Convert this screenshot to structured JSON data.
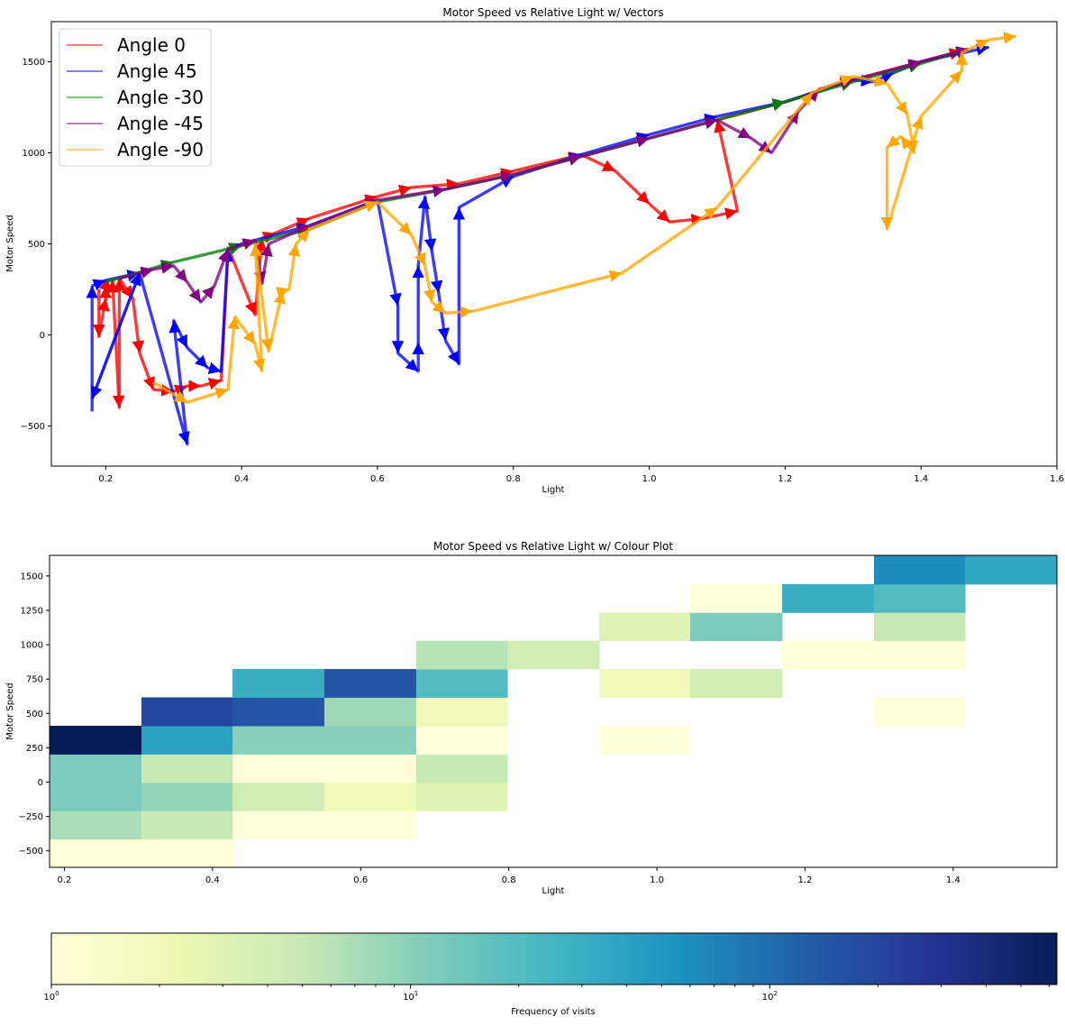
{
  "chart_data": [
    {
      "type": "line",
      "title": "Motor Speed vs Relative Light w/ Vectors",
      "xlabel": "Light",
      "ylabel": "Motor Speed",
      "xlim": [
        0.12,
        1.6
      ],
      "ylim": [
        -720,
        1720
      ],
      "xticks": [
        0.2,
        0.4,
        0.6,
        0.8,
        1.0,
        1.2,
        1.4,
        1.6
      ],
      "xtick_labels": [
        "0.2",
        "0.4",
        "0.6",
        "0.8",
        "1.0",
        "1.2",
        "1.4",
        "1.6"
      ],
      "yticks": [
        -500,
        0,
        500,
        1000,
        1500
      ],
      "ytick_labels": [
        "−500",
        "0",
        "500",
        "1000",
        "1500"
      ],
      "grid": false,
      "legend": "top-left",
      "series": [
        {
          "name": "Angle 0",
          "color": "#ff0000",
          "points": [
            [
              0.19,
              250
            ],
            [
              0.19,
              -10
            ],
            [
              0.2,
              200
            ],
            [
              0.2,
              270
            ],
            [
              0.21,
              240
            ],
            [
              0.21,
              300
            ],
            [
              0.22,
              -400
            ],
            [
              0.22,
              310
            ],
            [
              0.24,
              200
            ],
            [
              0.25,
              -100
            ],
            [
              0.27,
              -300
            ],
            [
              0.3,
              -310
            ],
            [
              0.32,
              -280
            ],
            [
              0.34,
              -280
            ],
            [
              0.37,
              -250
            ],
            [
              0.38,
              480
            ],
            [
              0.42,
              110
            ],
            [
              0.43,
              530
            ],
            [
              0.45,
              560
            ],
            [
              0.5,
              640
            ],
            [
              0.6,
              760
            ],
            [
              0.65,
              810
            ],
            [
              0.72,
              830
            ],
            [
              0.8,
              900
            ],
            [
              0.9,
              990
            ],
            [
              0.95,
              900
            ],
            [
              1.0,
              720
            ],
            [
              1.03,
              620
            ],
            [
              1.08,
              640
            ],
            [
              1.13,
              680
            ],
            [
              1.1,
              1180
            ],
            [
              1.2,
              1280
            ],
            [
              1.3,
              1400
            ],
            [
              1.4,
              1500
            ],
            [
              1.46,
              1560
            ]
          ]
        },
        {
          "name": "Angle 45",
          "color": "#0000ff",
          "points": [
            [
              0.18,
              -420
            ],
            [
              0.18,
              270
            ],
            [
              0.2,
              300
            ],
            [
              0.25,
              340
            ],
            [
              0.18,
              -350
            ],
            [
              0.25,
              340
            ],
            [
              0.32,
              -600
            ],
            [
              0.3,
              80
            ],
            [
              0.32,
              -70
            ],
            [
              0.35,
              -180
            ],
            [
              0.37,
              -200
            ],
            [
              0.38,
              470
            ],
            [
              0.4,
              500
            ],
            [
              0.5,
              600
            ],
            [
              0.6,
              740
            ],
            [
              0.63,
              160
            ],
            [
              0.63,
              -100
            ],
            [
              0.66,
              -200
            ],
            [
              0.66,
              -40
            ],
            [
              0.66,
              380
            ],
            [
              0.67,
              760
            ],
            [
              0.68,
              460
            ],
            [
              0.69,
              230
            ],
            [
              0.7,
              -30
            ],
            [
              0.72,
              -160
            ],
            [
              0.72,
              700
            ],
            [
              0.8,
              870
            ],
            [
              0.9,
              990
            ],
            [
              1.0,
              1100
            ],
            [
              1.1,
              1200
            ],
            [
              1.2,
              1280
            ],
            [
              1.3,
              1400
            ],
            [
              1.33,
              1390
            ],
            [
              1.36,
              1440
            ],
            [
              1.4,
              1500
            ],
            [
              1.5,
              1580
            ]
          ]
        },
        {
          "name": "Angle -30",
          "color": "#008000",
          "points": [
            [
              0.2,
              290
            ],
            [
              0.3,
              400
            ],
            [
              0.4,
              490
            ],
            [
              0.5,
              580
            ],
            [
              0.6,
              730
            ],
            [
              0.7,
              800
            ],
            [
              0.8,
              880
            ],
            [
              0.9,
              980
            ],
            [
              1.0,
              1080
            ],
            [
              1.1,
              1180
            ],
            [
              1.2,
              1280
            ],
            [
              1.3,
              1390
            ],
            [
              1.4,
              1490
            ],
            [
              1.47,
              1570
            ]
          ]
        },
        {
          "name": "Angle -45",
          "color": "#800080",
          "points": [
            [
              0.22,
              310
            ],
            [
              0.27,
              360
            ],
            [
              0.3,
              380
            ],
            [
              0.32,
              290
            ],
            [
              0.34,
              180
            ],
            [
              0.36,
              270
            ],
            [
              0.38,
              470
            ],
            [
              0.42,
              520
            ],
            [
              0.43,
              280
            ],
            [
              0.44,
              500
            ],
            [
              0.5,
              600
            ],
            [
              0.6,
              740
            ],
            [
              0.7,
              800
            ],
            [
              0.8,
              880
            ],
            [
              0.9,
              980
            ],
            [
              1.0,
              1080
            ],
            [
              1.1,
              1180
            ],
            [
              1.15,
              1080
            ],
            [
              1.18,
              1000
            ],
            [
              1.22,
              1230
            ],
            [
              1.25,
              1350
            ],
            [
              1.3,
              1400
            ],
            [
              1.4,
              1500
            ],
            [
              1.47,
              1570
            ]
          ]
        },
        {
          "name": "Angle -90",
          "color": "#ffa500",
          "points": [
            [
              0.27,
              -260
            ],
            [
              0.32,
              -370
            ],
            [
              0.38,
              -300
            ],
            [
              0.39,
              100
            ],
            [
              0.42,
              -50
            ],
            [
              0.43,
              -200
            ],
            [
              0.42,
              500
            ],
            [
              0.44,
              -90
            ],
            [
              0.46,
              240
            ],
            [
              0.47,
              250
            ],
            [
              0.48,
              500
            ],
            [
              0.5,
              580
            ],
            [
              0.6,
              730
            ],
            [
              0.65,
              550
            ],
            [
              0.67,
              380
            ],
            [
              0.68,
              180
            ],
            [
              0.7,
              120
            ],
            [
              0.74,
              130
            ],
            [
              0.96,
              340
            ],
            [
              1.1,
              700
            ],
            [
              1.24,
              1330
            ],
            [
              1.3,
              1420
            ],
            [
              1.35,
              1380
            ],
            [
              1.38,
              1210
            ],
            [
              1.39,
              1000
            ],
            [
              1.37,
              1090
            ],
            [
              1.35,
              1030
            ],
            [
              1.35,
              580
            ],
            [
              1.4,
              1200
            ],
            [
              1.46,
              1450
            ],
            [
              1.46,
              1550
            ],
            [
              1.5,
              1620
            ],
            [
              1.54,
              1640
            ]
          ]
        }
      ]
    },
    {
      "type": "heatmap",
      "title": "Motor Speed vs Relative Light w/ Colour Plot",
      "xlabel": "Light",
      "ylabel": "Motor Speed",
      "xlim": [
        0.18,
        1.54
      ],
      "ylim": [
        -620,
        1650
      ],
      "xticks": [
        0.2,
        0.4,
        0.6,
        0.8,
        1.0,
        1.2,
        1.4
      ],
      "xtick_labels": [
        "0.2",
        "0.4",
        "0.6",
        "0.8",
        "1.0",
        "1.2",
        "1.4"
      ],
      "yticks": [
        -500,
        -250,
        0,
        250,
        500,
        750,
        1000,
        1250,
        1500
      ],
      "ytick_labels": [
        "−500",
        "−250",
        "0",
        "250",
        "500",
        "750",
        "1000",
        "1250",
        "1500"
      ],
      "x_edges": [
        0.18,
        0.304,
        0.427,
        0.551,
        0.675,
        0.798,
        0.922,
        1.045,
        1.169,
        1.293,
        1.416,
        1.54
      ],
      "y_edges": [
        -620,
        -414,
        -208,
        -2,
        204,
        410,
        617,
        823,
        1029,
        1235,
        1441,
        1650
      ],
      "counts": [
        [
          1,
          1,
          null,
          null,
          null,
          null,
          null,
          null,
          null,
          null,
          null
        ],
        [
          7,
          5,
          1,
          1,
          null,
          null,
          null,
          null,
          null,
          null,
          null
        ],
        [
          12,
          9,
          4,
          2,
          3,
          null,
          null,
          null,
          null,
          null,
          null
        ],
        [
          12,
          5,
          1,
          1,
          5,
          null,
          null,
          null,
          null,
          null,
          null
        ],
        [
          700,
          40,
          10,
          10,
          1,
          null,
          1,
          null,
          null,
          null,
          null
        ],
        [
          null,
          200,
          150,
          8,
          2,
          null,
          null,
          null,
          null,
          1,
          null
        ],
        [
          null,
          null,
          30,
          150,
          20,
          null,
          2,
          4,
          null,
          null,
          null
        ],
        [
          null,
          null,
          null,
          null,
          6,
          4,
          null,
          null,
          1,
          1,
          null
        ],
        [
          null,
          null,
          null,
          null,
          null,
          null,
          3,
          12,
          null,
          5,
          null
        ],
        [
          null,
          null,
          null,
          null,
          null,
          null,
          null,
          1,
          30,
          20,
          null
        ],
        [
          null,
          null,
          null,
          null,
          null,
          null,
          null,
          null,
          null,
          60,
          35
        ]
      ]
    },
    {
      "type": "colorbar",
      "scale": "log",
      "clim": [
        1,
        630
      ],
      "label": "Frequency of visits",
      "ticks": [
        1,
        10,
        100
      ],
      "tick_base": [
        "10",
        "10",
        "10"
      ],
      "tick_exp": [
        "0",
        "1",
        "2"
      ],
      "colormap": [
        "#ffffd9",
        "#edf8b1",
        "#c7e9b4",
        "#7fcdbb",
        "#41b6c4",
        "#1d91c0",
        "#225ea8",
        "#253494",
        "#081d58"
      ]
    }
  ]
}
